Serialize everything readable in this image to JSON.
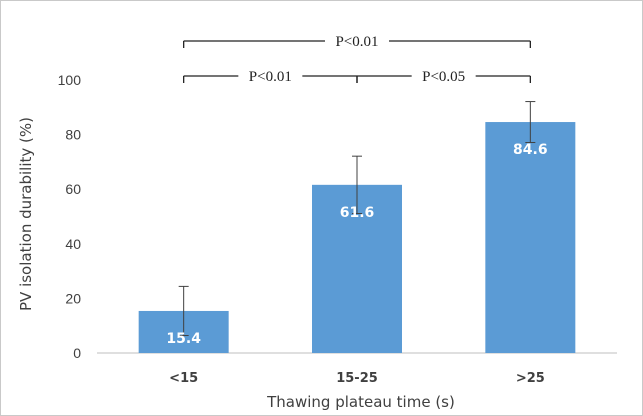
{
  "chart_data": {
    "type": "bar",
    "categories": [
      "<15",
      "15-25",
      ">25"
    ],
    "values": [
      15.4,
      61.6,
      84.6
    ],
    "error": [
      9.0,
      10.5,
      7.5
    ],
    "value_labels": [
      "15.4",
      "61.6",
      "84.6"
    ],
    "xlabel": "Thawing plateau time (s)",
    "ylabel": "PV isolation durability (%)",
    "ylim": [
      0,
      100
    ],
    "yticks": [
      0,
      20,
      40,
      60,
      80,
      100
    ],
    "ytick_labels": [
      "0",
      "20",
      "40",
      "60",
      "80",
      "100"
    ],
    "grid": false,
    "bar_color": "#5b9bd5",
    "annotations": [
      {
        "from": 0,
        "to": 2,
        "text": "P<0.01"
      },
      {
        "from": 0,
        "to": 1,
        "text": "P<0.01"
      },
      {
        "from": 1,
        "to": 2,
        "text": "P<0.05"
      }
    ]
  }
}
